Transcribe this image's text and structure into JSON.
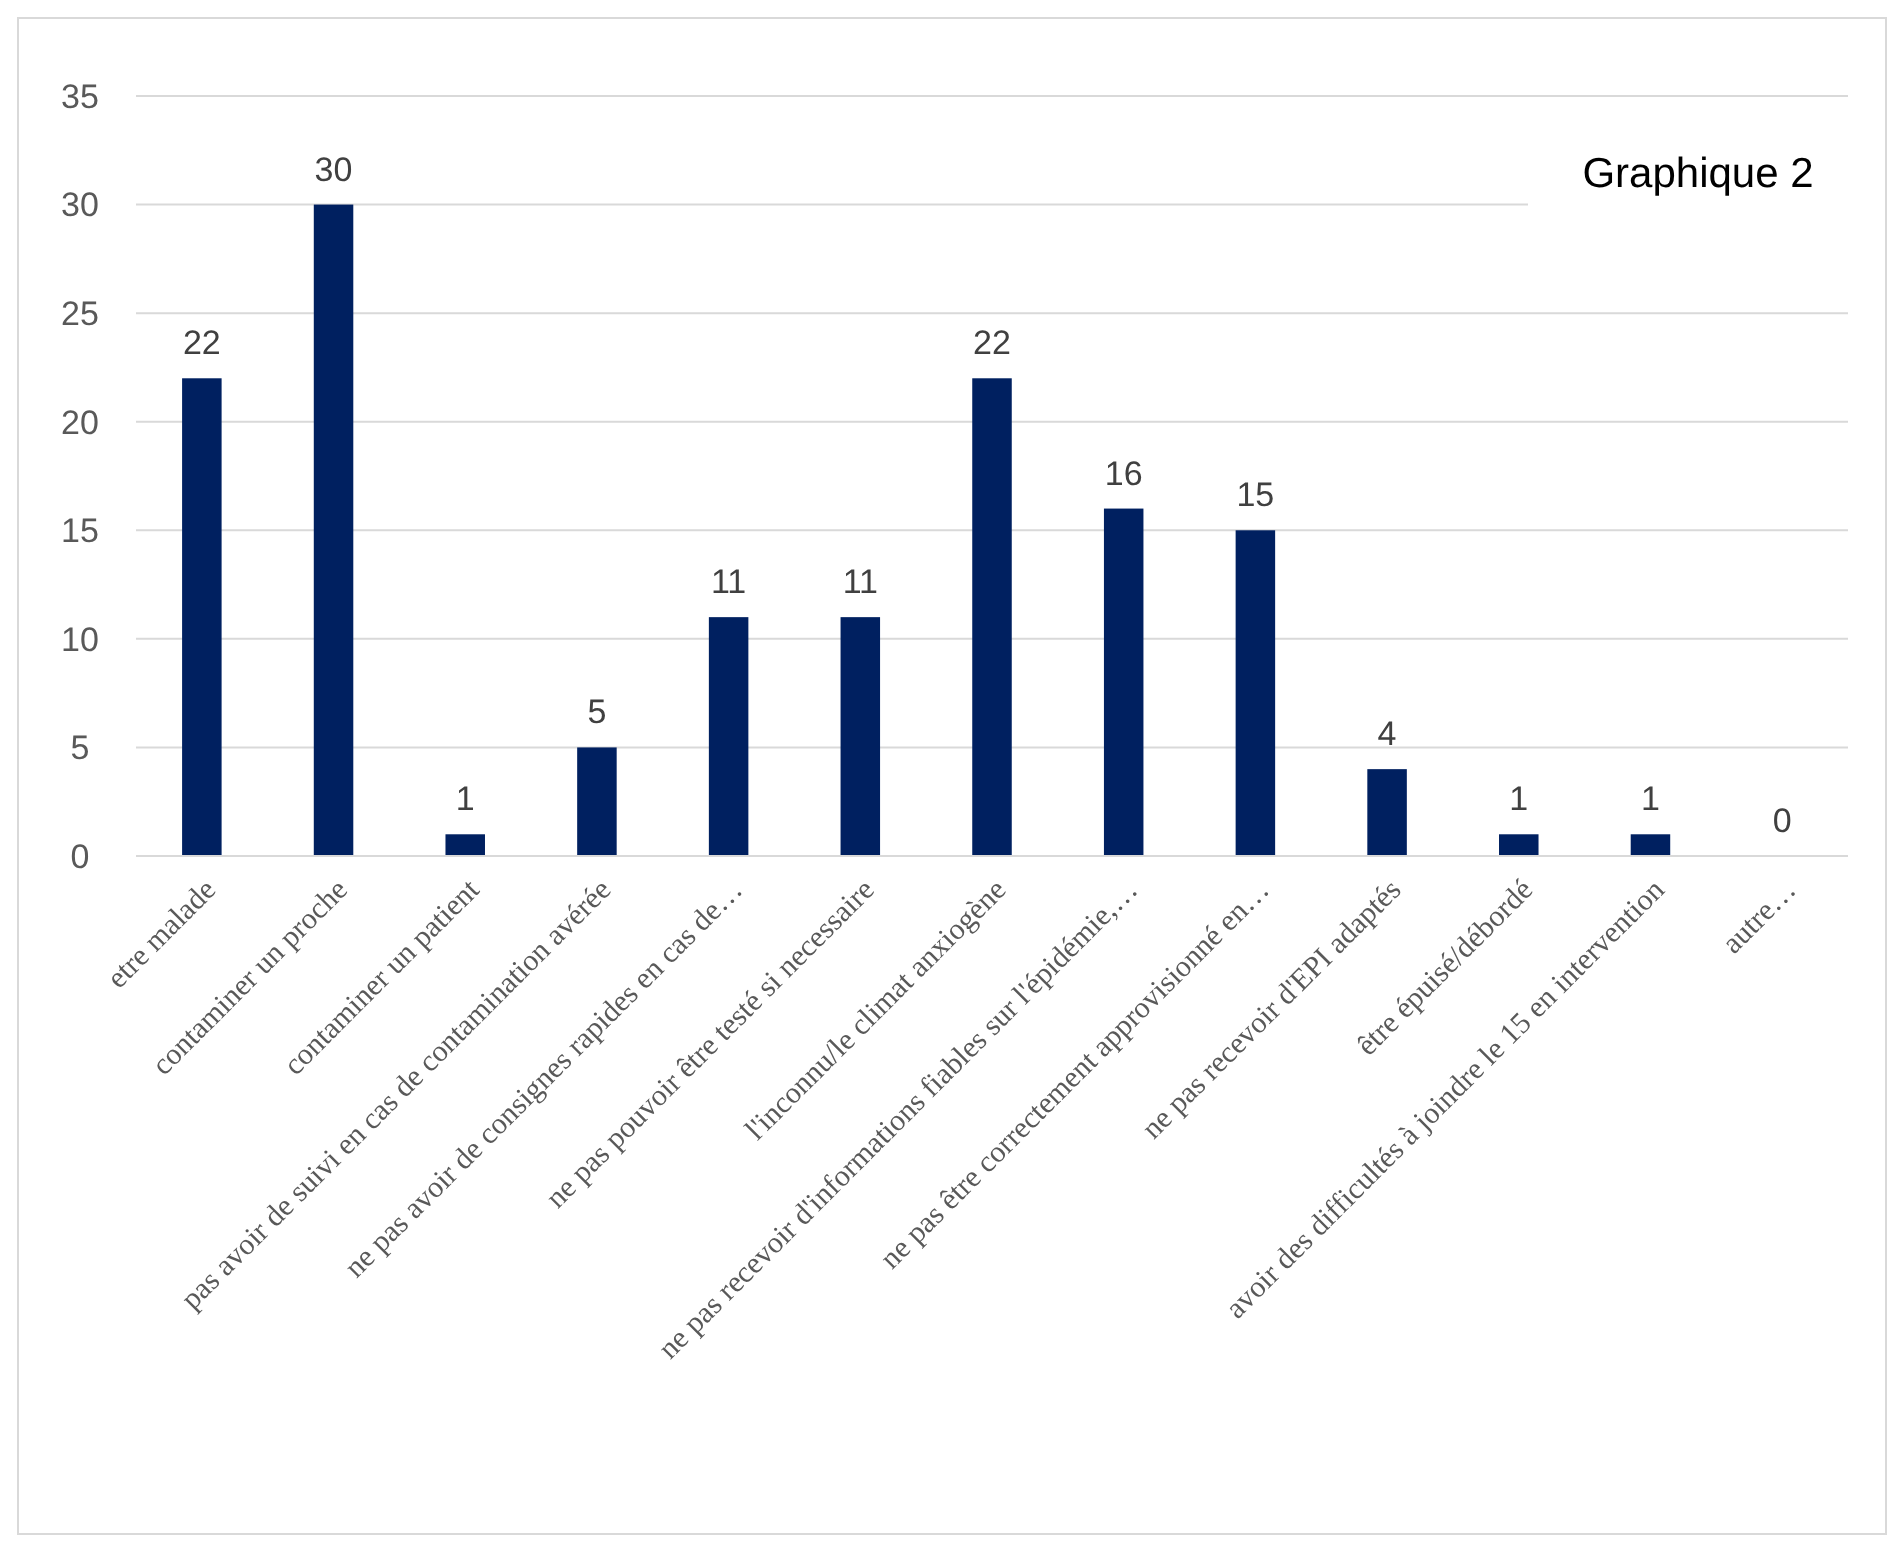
{
  "chart_data": {
    "type": "bar",
    "title": "Graphique 2",
    "categories": [
      "etre malade",
      "contaminer un proche",
      "contaminer un patient",
      "pas avoir de suivi en cas de contamination avérée",
      "ne pas avoir de consignes rapides en cas de…",
      "ne pas pouvoir être testé si necessaire",
      "l'inconnu/le climat anxiogène",
      "ne pas recevoir d'informations fiables sur l'épidémie,…",
      "ne pas être correctement approvisionné en…",
      "ne pas recevoir d'EPI adaptés",
      "être épuisé/débordé",
      "avoir des difficultés à joindre le 15 en intervention",
      "autre…"
    ],
    "values": [
      22,
      30,
      1,
      5,
      11,
      11,
      22,
      16,
      15,
      4,
      1,
      1,
      0
    ],
    "color": "#002060",
    "ylim": [
      0,
      35
    ],
    "yticks": [
      0,
      5,
      10,
      15,
      20,
      25,
      30,
      35
    ],
    "grid": "y",
    "data_labels": true
  }
}
